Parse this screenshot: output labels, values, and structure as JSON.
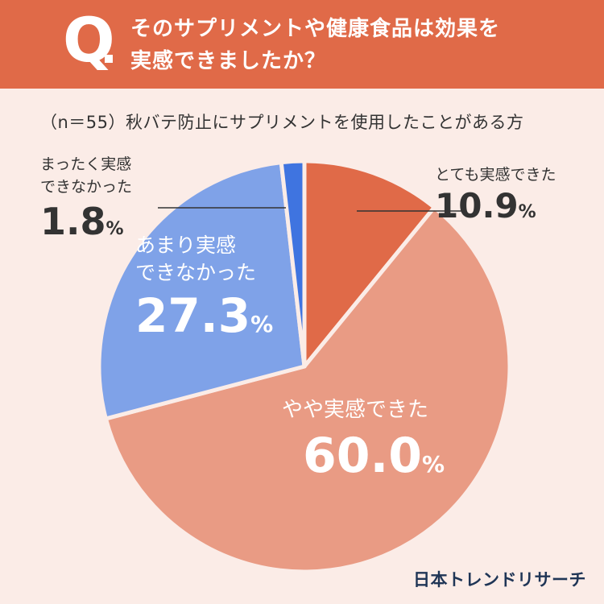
{
  "header": {
    "q_letter": "Q",
    "question_line1": "そのサプリメントや健康食品は効果を",
    "question_line2": "実感できましたか？"
  },
  "subtitle": "（n＝55）秋バテ防止にサプリメントを使用したことがある方",
  "chart_data": {
    "type": "pie",
    "sample_label": "（n＝55）",
    "slices": [
      {
        "label": "とても実感できた",
        "value": 10.9,
        "color": "#e06a48"
      },
      {
        "label": "やや実感できた",
        "value": 60.0,
        "color": "#e99b84"
      },
      {
        "label": "あまり実感\nできなかった",
        "value": 27.3,
        "color": "#7fa2e8"
      },
      {
        "label": "まったく実感\nできなかった",
        "value": 1.8,
        "color": "#3f74e0"
      }
    ],
    "unit": "%"
  },
  "labels": {
    "s0_name": "とても実感できた",
    "s0_val": "10.9",
    "s0_pct": "%",
    "s1_name": "やや実感できた",
    "s1_val": "60.0",
    "s1_pct": "%",
    "s2_name": "あまり実感\nできなかった",
    "s2_val": "27.3",
    "s2_pct": "%",
    "s3_name": "まったく実感\nできなかった",
    "s3_val": "1.8",
    "s3_pct": "%"
  },
  "brand": "日本トレンドリサーチ"
}
